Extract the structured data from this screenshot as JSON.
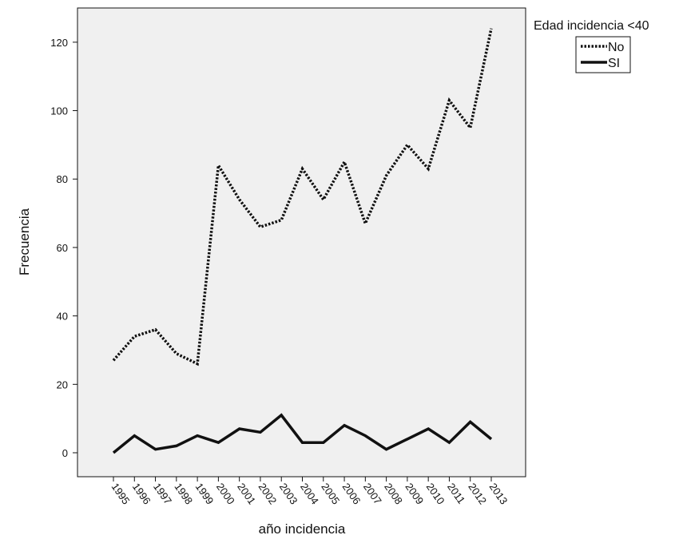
{
  "chart_data": {
    "type": "line",
    "title": "",
    "xlabel": "año incidencia",
    "ylabel": "Frecuencia",
    "categories": [
      "1995",
      "1996",
      "1997",
      "1998",
      "1999",
      "2000",
      "2001",
      "2002",
      "2003",
      "2004",
      "2005",
      "2006",
      "2007",
      "2008",
      "2009",
      "2010",
      "2011",
      "2012",
      "2013"
    ],
    "ylim": [
      -7,
      130
    ],
    "yticks": [
      0,
      20,
      40,
      60,
      80,
      100,
      120
    ],
    "grid": false,
    "legend": {
      "title": "Edad incidencia <40",
      "placement": "top-right outside plot"
    },
    "series": [
      {
        "name": "No",
        "style": "dotted",
        "color": "#111111",
        "values": [
          27,
          34,
          36,
          29,
          26,
          84,
          74,
          66,
          68,
          83,
          74,
          85,
          67,
          81,
          90,
          83,
          103,
          95,
          124
        ]
      },
      {
        "name": "SI",
        "style": "solid",
        "color": "#111111",
        "values": [
          0,
          5,
          1,
          2,
          5,
          3,
          7,
          6,
          11,
          3,
          3,
          8,
          5,
          1,
          4,
          7,
          3,
          9,
          4
        ]
      }
    ],
    "plot_background": "#f0f0f0"
  }
}
